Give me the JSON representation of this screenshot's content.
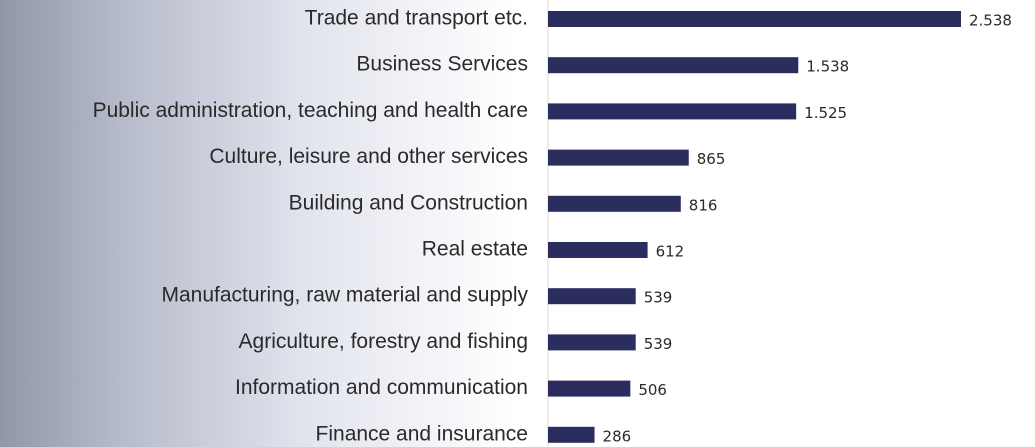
{
  "chart_data": {
    "type": "bar",
    "orientation": "horizontal",
    "categories": [
      "Trade and transport etc.",
      "Business Services",
      "Public administration, teaching and health care",
      "Culture, leisure and other services",
      "Building and Construction",
      "Real estate",
      "Manufacturing, raw material and supply",
      "Agriculture, forestry and fishing",
      "Information and communication",
      "Finance and insurance"
    ],
    "values": [
      2538,
      1538,
      1525,
      865,
      816,
      612,
      539,
      539,
      506,
      286
    ],
    "value_labels": [
      "2.538",
      "1.538",
      "1.525",
      "865",
      "816",
      "612",
      "539",
      "539",
      "506",
      "286"
    ],
    "color": "#2b2d5f"
  }
}
